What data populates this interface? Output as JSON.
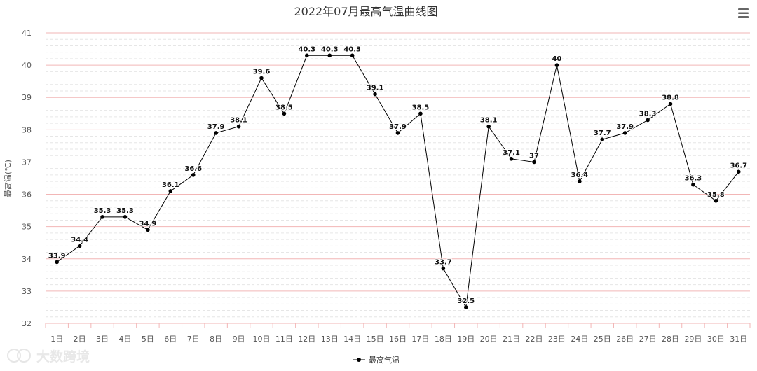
{
  "chart_data": {
    "type": "line",
    "title": "2022年07月最高气温曲线图",
    "ylabel": "最高温(℃)",
    "xlabel": "",
    "ylim": [
      32,
      41
    ],
    "yticks": [
      "32",
      "33",
      "34",
      "35",
      "36",
      "37",
      "38",
      "39",
      "40",
      "41"
    ],
    "categories": [
      "1日",
      "2日",
      "3日",
      "4日",
      "5日",
      "6日",
      "7日",
      "8日",
      "9日",
      "10日",
      "11日",
      "12日",
      "13日",
      "14日",
      "15日",
      "16日",
      "17日",
      "18日",
      "19日",
      "20日",
      "21日",
      "22日",
      "23日",
      "24日",
      "25日",
      "26日",
      "27日",
      "28日",
      "29日",
      "30日",
      "31日"
    ],
    "series": [
      {
        "name": "最高气温",
        "values": [
          33.9,
          34.4,
          35.3,
          35.3,
          34.9,
          36.1,
          36.6,
          37.9,
          38.1,
          39.6,
          38.5,
          40.3,
          40.3,
          40.3,
          39.1,
          37.9,
          38.5,
          33.7,
          32.5,
          38.1,
          37.1,
          37,
          40,
          36.4,
          37.7,
          37.9,
          38.3,
          38.8,
          36.3,
          35.8,
          36.7
        ],
        "color": "#000000"
      }
    ],
    "grid": true,
    "legend": "bottom-center",
    "gridline_color": "#f2b6b6",
    "minor_gridline_color": "#e6e6e6"
  },
  "watermark": "大数跨境",
  "menu_icon": "menu-icon"
}
